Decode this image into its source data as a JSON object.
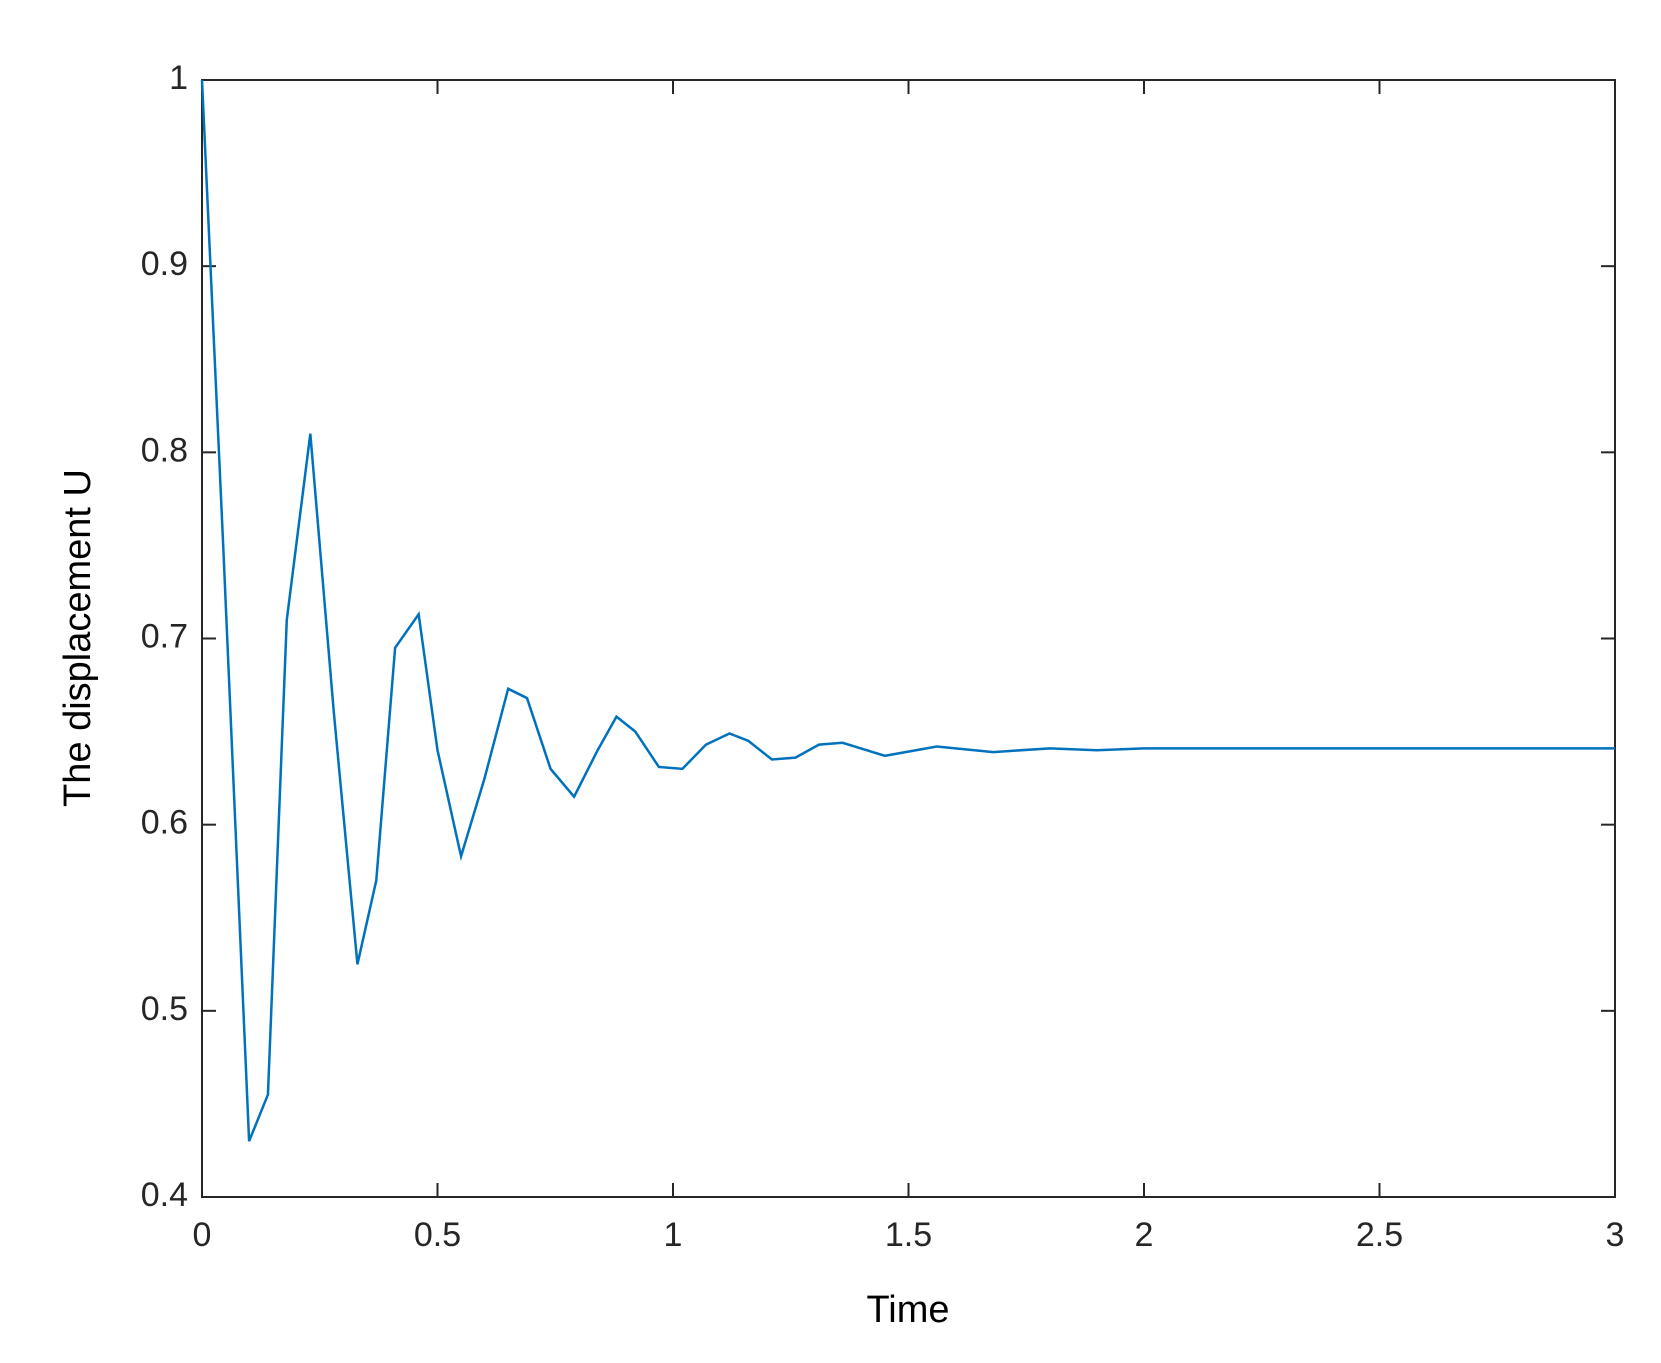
{
  "chart_data": {
    "type": "line",
    "xlabel": "Time",
    "ylabel": "The displacement U",
    "x": [
      0,
      0.045,
      0.1,
      0.14,
      0.18,
      0.23,
      0.28,
      0.33,
      0.37,
      0.41,
      0.46,
      0.5,
      0.55,
      0.6,
      0.65,
      0.69,
      0.74,
      0.79,
      0.84,
      0.88,
      0.92,
      0.97,
      1.02,
      1.07,
      1.12,
      1.16,
      1.21,
      1.26,
      1.31,
      1.36,
      1.45,
      1.56,
      1.68,
      1.8,
      1.9,
      2,
      3
    ],
    "series": [
      {
        "color": "#0072bd",
        "values": [
          1,
          0.75,
          0.43,
          0.455,
          0.71,
          0.81,
          0.66,
          0.525,
          0.57,
          0.695,
          0.713,
          0.64,
          0.583,
          0.625,
          0.673,
          0.668,
          0.63,
          0.615,
          0.64,
          0.658,
          0.65,
          0.631,
          0.63,
          0.643,
          0.649,
          0.645,
          0.635,
          0.636,
          0.643,
          0.644,
          0.637,
          0.642,
          0.639,
          0.641,
          0.64,
          0.641,
          0.641
        ]
      }
    ],
    "xlim": [
      0,
      3
    ],
    "ylim": [
      0.4,
      1
    ],
    "xticks": [
      0,
      0.5,
      1,
      1.5,
      2,
      2.5,
      3
    ],
    "yticks": [
      0.4,
      0.5,
      0.6,
      0.7,
      0.8,
      0.9,
      1
    ],
    "grid": false
  }
}
